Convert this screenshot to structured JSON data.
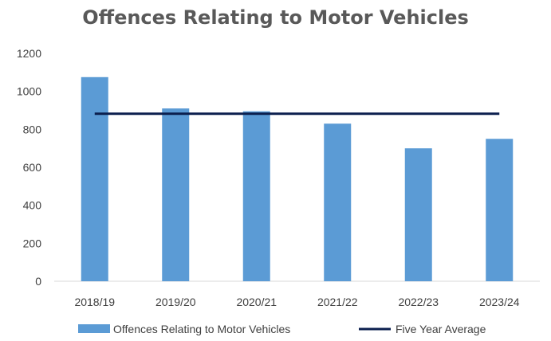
{
  "chart_data": {
    "type": "bar",
    "title": "Offences Relating to Motor Vehicles",
    "categories": [
      "2018/19",
      "2019/20",
      "2020/21",
      "2021/22",
      "2022/23",
      "2023/24"
    ],
    "series": [
      {
        "name": "Offences Relating to Motor Vehicles",
        "type": "bar",
        "color": "#5B9BD5",
        "values": [
          1075,
          910,
          895,
          830,
          700,
          750
        ]
      },
      {
        "name": "Five Year Average",
        "type": "line",
        "color": "#0B1F4E",
        "values": [
          882,
          882,
          882,
          882,
          882,
          882
        ]
      }
    ],
    "yticks": [
      0,
      200,
      400,
      600,
      800,
      1000,
      1200
    ],
    "ylim": [
      0,
      1200
    ],
    "grid": false,
    "legend_position": "bottom"
  }
}
